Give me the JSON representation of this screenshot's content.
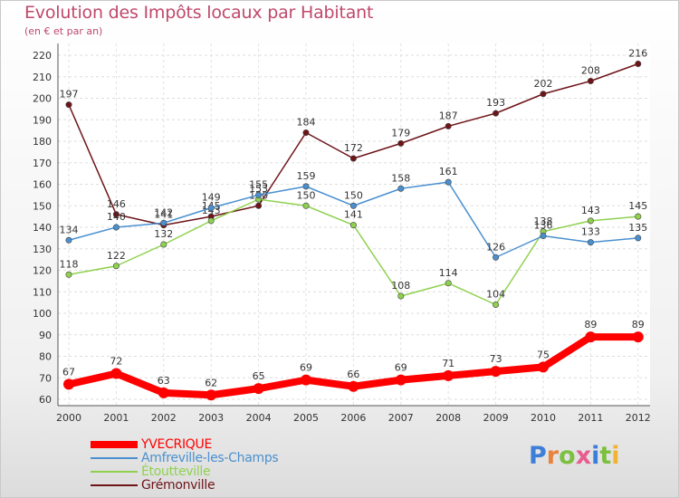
{
  "title": "Evolution des Impôts locaux par Habitant",
  "subtitle": "(en € et par an)",
  "brand": {
    "letters": [
      "P",
      "r",
      "o",
      "x",
      "i",
      "t",
      "i"
    ],
    "colors": [
      "#3d7fd8",
      "#e9823b",
      "#7cc040",
      "#e85d8f",
      "#3d7fd8",
      "#7cc040",
      "#f2b233"
    ]
  },
  "chart_data": {
    "type": "line",
    "title": "Evolution des Impôts locaux par Habitant",
    "ylabel": "(en € et par an)",
    "xlabel": "",
    "x": [
      "2000",
      "2001",
      "2002",
      "2003",
      "2004",
      "2005",
      "2006",
      "2007",
      "2008",
      "2009",
      "2010",
      "2011",
      "2012"
    ],
    "y_ticks": [
      "60",
      "70",
      "80",
      "90",
      "100",
      "110",
      "120",
      "130",
      "140",
      "150",
      "160",
      "170",
      "180",
      "190",
      "200",
      "210",
      "220"
    ],
    "ylim": [
      60,
      220
    ],
    "grid": true,
    "legend": "bottom-left",
    "series": [
      {
        "name": "Grémonville",
        "color": "#6e1418",
        "values": [
          197,
          146,
          141,
          145,
          150,
          184,
          172,
          179,
          187,
          193,
          202,
          208,
          216
        ],
        "labels": [
          "197",
          "146",
          "141",
          "145",
          "150",
          "184",
          "172",
          "179",
          "187",
          "193",
          "202",
          "208",
          "216"
        ]
      },
      {
        "name": "Étoutteville",
        "color": "#8fd14f",
        "values": [
          118,
          122,
          132,
          143,
          153,
          150,
          141,
          108,
          114,
          104,
          138,
          143,
          145
        ],
        "labels": [
          "118",
          "122",
          "132",
          "143",
          "153",
          "150",
          "141",
          "108",
          "114",
          "104",
          "138",
          "143",
          "145"
        ]
      },
      {
        "name": "Amfreville-les-Champs",
        "color": "#4a90d0",
        "values": [
          134,
          140,
          142,
          149,
          155,
          159,
          150,
          158,
          161,
          126,
          136,
          133,
          135
        ],
        "labels": [
          "134",
          "140",
          "142",
          "149",
          "155",
          "159",
          "150",
          "158",
          "161",
          "126",
          "136",
          "133",
          "135"
        ]
      },
      {
        "name": "YVECRIQUE",
        "color": "#ff0000",
        "values": [
          67,
          72,
          63,
          62,
          65,
          69,
          66,
          69,
          71,
          73,
          75,
          89,
          89
        ],
        "labels": [
          "67",
          "72",
          "63",
          "62",
          "65",
          "69",
          "66",
          "69",
          "71",
          "73",
          "75",
          "89",
          "89"
        ]
      }
    ]
  },
  "legend_items": [
    {
      "label": "YVECRIQUE",
      "color": "#ff0000",
      "stroke": 8
    },
    {
      "label": "Amfreville-les-Champs",
      "color": "#4a90d0",
      "stroke": 2
    },
    {
      "label": "Étoutteville",
      "color": "#8fd14f",
      "stroke": 2
    },
    {
      "label": "Grémonville",
      "color": "#6e1418",
      "stroke": 2
    }
  ]
}
